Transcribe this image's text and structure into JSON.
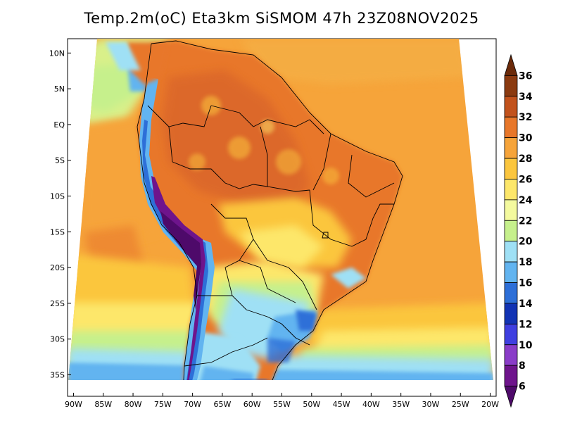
{
  "title": "Temp.2m(oC) Eta3km SiSMOM 47h 23Z08NOV2025",
  "map": {
    "lon_labels": [
      "90W",
      "85W",
      "80W",
      "75W",
      "70W",
      "65W",
      "60W",
      "55W",
      "50W",
      "45W",
      "40W",
      "35W",
      "30W",
      "25W",
      "20W"
    ],
    "lat_labels": [
      "10N",
      "5N",
      "EQ",
      "5S",
      "10S",
      "15S",
      "20S",
      "25S",
      "30S",
      "35S"
    ],
    "lon_values": [
      -90,
      -85,
      -80,
      -75,
      -70,
      -65,
      -60,
      -55,
      -50,
      -45,
      -40,
      -35,
      -30,
      -25,
      -20
    ],
    "lat_values": [
      10,
      5,
      0,
      -5,
      -10,
      -15,
      -20,
      -25,
      -30,
      -35
    ],
    "lon_range": [
      -91,
      -19
    ],
    "lat_range": [
      -38,
      12
    ]
  },
  "colorbar": {
    "levels": [
      "36",
      "34",
      "32",
      "30",
      "28",
      "26",
      "24",
      "22",
      "20",
      "18",
      "16",
      "14",
      "12",
      "10",
      "8",
      "6"
    ],
    "colors": [
      "#6b2a0a",
      "#8b3a10",
      "#c2521c",
      "#e8772a",
      "#f6a43a",
      "#fbc63e",
      "#fde76a",
      "#f4fa9e",
      "#c6f08c",
      "#9fe0f5",
      "#62b4f0",
      "#2d6fd8",
      "#1233b4",
      "#3f3fe0",
      "#8a3cc8",
      "#6e148c",
      "#4e0a6a"
    ]
  }
}
